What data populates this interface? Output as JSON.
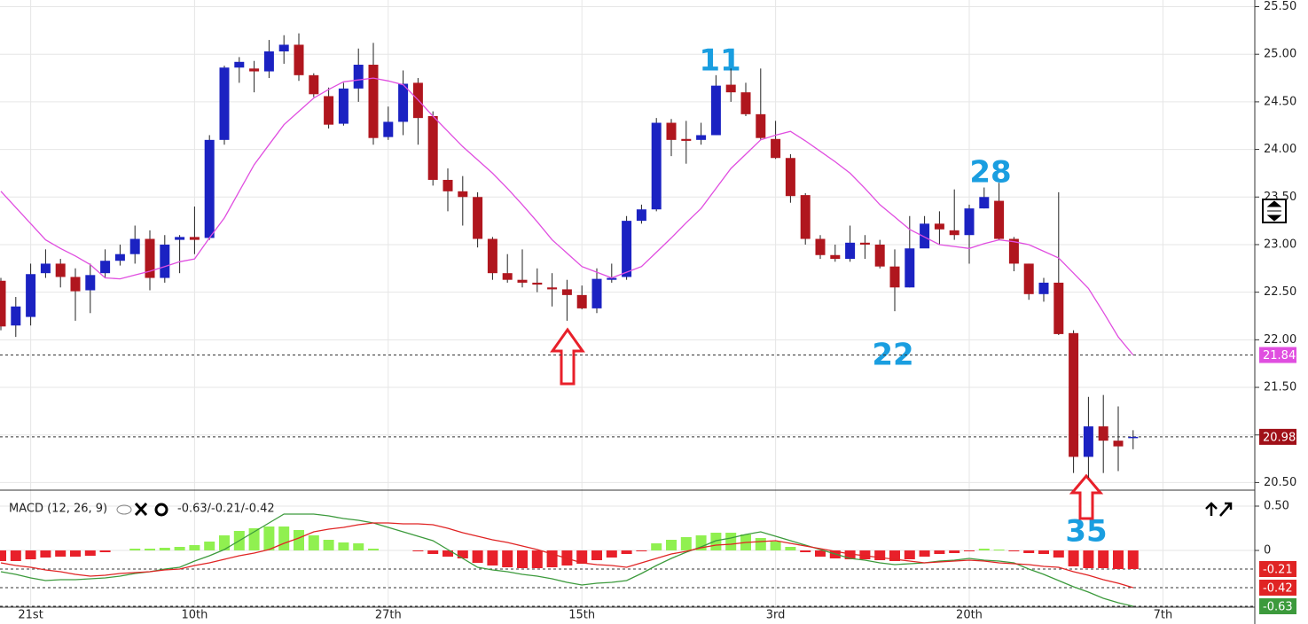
{
  "chart_data": [
    {
      "type": "candlestick",
      "categories": [
        null,
        null,
        "21st",
        null,
        null,
        null,
        null,
        null,
        null,
        null,
        null,
        null,
        null,
        "10th",
        null,
        null,
        null,
        null,
        null,
        null,
        null,
        null,
        null,
        null,
        null,
        null,
        "27th",
        null,
        null,
        null,
        null,
        null,
        null,
        null,
        null,
        null,
        null,
        null,
        null,
        "15th",
        null,
        null,
        null,
        null,
        null,
        null,
        null,
        null,
        null,
        null,
        null,
        null,
        "3rd",
        null,
        null,
        null,
        null,
        null,
        null,
        null,
        null,
        null,
        null,
        null,
        null,
        "20th",
        null,
        null,
        null,
        null,
        null,
        null,
        null,
        null,
        null,
        null,
        null,
        null,
        "7th"
      ],
      "open": [
        22.62,
        22.15,
        22.24,
        22.7,
        22.8,
        22.66,
        22.52,
        22.7,
        22.83,
        22.9,
        23.06,
        22.65,
        23.05,
        23.08,
        23.07,
        24.1,
        24.86,
        24.85,
        24.82,
        25.03,
        25.1,
        24.78,
        24.56,
        24.27,
        24.64,
        24.89,
        24.13,
        24.29,
        24.7,
        24.35,
        23.68,
        23.56,
        23.5,
        23.06,
        22.7,
        22.63,
        22.6,
        22.55,
        22.53,
        22.47,
        22.33,
        22.63,
        22.66,
        23.25,
        23.37,
        24.28,
        24.11,
        24.1,
        24.15,
        24.68,
        24.6,
        24.37,
        24.11,
        23.91,
        23.52,
        23.06,
        22.89,
        22.85,
        23.02,
        23.0,
        22.77,
        22.55,
        22.96,
        23.22,
        23.15,
        23.1,
        23.38,
        23.46,
        23.06,
        22.8,
        22.48,
        22.6,
        22.07,
        20.77,
        21.09,
        20.94,
        20.98,
        null,
        null
      ],
      "high": [
        22.65,
        22.45,
        22.8,
        22.95,
        22.85,
        22.75,
        22.8,
        22.95,
        23.0,
        23.2,
        23.15,
        23.1,
        23.1,
        23.4,
        24.15,
        24.88,
        24.97,
        24.93,
        25.15,
        25.2,
        25.22,
        24.8,
        24.65,
        24.7,
        25.06,
        25.12,
        24.45,
        24.83,
        24.75,
        24.4,
        23.8,
        23.72,
        23.55,
        23.08,
        22.9,
        22.95,
        22.75,
        22.7,
        22.63,
        22.57,
        22.75,
        22.8,
        23.3,
        23.42,
        24.33,
        24.32,
        24.3,
        24.28,
        24.78,
        24.85,
        24.7,
        24.85,
        24.3,
        23.95,
        23.54,
        23.1,
        23.0,
        23.2,
        23.1,
        23.05,
        22.95,
        23.3,
        23.3,
        23.35,
        23.58,
        23.42,
        23.6,
        23.65,
        23.08,
        22.8,
        22.65,
        23.55,
        22.1,
        21.4,
        21.42,
        21.3,
        21.05,
        null,
        null
      ],
      "low": [
        22.1,
        22.03,
        22.15,
        22.65,
        22.55,
        22.2,
        22.28,
        22.65,
        22.78,
        22.8,
        22.52,
        22.6,
        22.7,
        22.9,
        23.05,
        24.05,
        24.7,
        24.6,
        24.75,
        24.9,
        24.72,
        24.55,
        24.22,
        24.25,
        24.5,
        24.05,
        24.1,
        24.15,
        24.05,
        23.62,
        23.35,
        23.2,
        22.97,
        22.63,
        22.6,
        22.55,
        22.5,
        22.35,
        22.2,
        22.32,
        22.28,
        22.6,
        22.63,
        23.22,
        23.35,
        23.93,
        23.85,
        24.05,
        24.15,
        24.5,
        24.35,
        24.1,
        23.9,
        23.44,
        23.0,
        22.85,
        22.82,
        22.82,
        22.85,
        22.75,
        22.3,
        22.55,
        22.97,
        23.0,
        23.05,
        22.8,
        23.38,
        23.05,
        22.72,
        22.42,
        22.4,
        22.05,
        20.6,
        20.55,
        20.6,
        20.62,
        20.85,
        null,
        null
      ],
      "close": [
        22.14,
        22.35,
        22.69,
        22.8,
        22.66,
        22.51,
        22.68,
        22.83,
        22.9,
        23.06,
        22.65,
        23.0,
        23.08,
        23.05,
        24.1,
        24.86,
        24.92,
        24.82,
        25.03,
        25.1,
        24.78,
        24.58,
        24.26,
        24.64,
        24.89,
        24.12,
        24.29,
        24.69,
        24.33,
        23.68,
        23.56,
        23.5,
        23.06,
        22.7,
        22.63,
        22.6,
        22.58,
        22.53,
        22.47,
        22.33,
        22.64,
        22.65,
        23.25,
        23.37,
        24.28,
        24.1,
        24.09,
        24.15,
        24.67,
        24.6,
        24.37,
        24.12,
        23.91,
        23.51,
        23.06,
        22.89,
        22.85,
        23.02,
        23.0,
        22.77,
        22.55,
        22.96,
        23.22,
        23.16,
        23.1,
        23.38,
        23.5,
        23.06,
        22.8,
        22.48,
        22.6,
        22.06,
        20.77,
        21.09,
        20.94,
        20.88,
        20.98,
        null,
        null
      ],
      "up_color": "#1b22c2",
      "down_color": "#b0161e",
      "overlay": {
        "color": "#e04ee0",
        "values": [
          23.56,
          23.39,
          23.22,
          23.05,
          22.96,
          22.88,
          22.79,
          22.65,
          22.64,
          22.68,
          22.72,
          22.77,
          22.82,
          22.85,
          23.07,
          23.28,
          23.56,
          23.84,
          24.05,
          24.26,
          24.4,
          24.54,
          24.63,
          24.71,
          24.73,
          24.75,
          24.72,
          24.68,
          24.52,
          24.35,
          24.19,
          24.03,
          23.89,
          23.75,
          23.59,
          23.42,
          23.24,
          23.05,
          22.91,
          22.77,
          22.71,
          22.65,
          22.71,
          22.77,
          22.92,
          23.07,
          23.23,
          23.38,
          23.59,
          23.8,
          23.95,
          24.1,
          24.15,
          24.19,
          24.09,
          23.98,
          23.87,
          23.75,
          23.59,
          23.42,
          23.29,
          23.16,
          23.08,
          23.0,
          22.98,
          22.96,
          23.01,
          23.05,
          23.03,
          23.0,
          22.93,
          22.86,
          22.7,
          22.54,
          22.29,
          22.03,
          21.84,
          null,
          null
        ]
      },
      "ylim": [
        20.42,
        25.57
      ],
      "yticks": [
        {
          "value": 20.5,
          "label": "20.50"
        },
        {
          "value": 21,
          "label": "21.00"
        },
        {
          "value": 21.5,
          "label": "21.50"
        },
        {
          "value": 22,
          "label": "22.00"
        },
        {
          "value": 22.5,
          "label": "22.50"
        },
        {
          "value": 23,
          "label": "23.00"
        },
        {
          "value": 23.5,
          "label": "23.50"
        },
        {
          "value": 24,
          "label": "24.00"
        },
        {
          "value": 24.5,
          "label": "24.50"
        },
        {
          "value": 25,
          "label": "25.00"
        },
        {
          "value": 25.5,
          "label": "25.50"
        }
      ],
      "markers": [
        {
          "value": 21.84,
          "color": "#e04ee0"
        },
        {
          "value": 20.98,
          "color": "#a01018"
        }
      ],
      "annotations": [
        "11",
        "28",
        "22",
        "35"
      ],
      "grid": true
    },
    {
      "type": "macd",
      "title": "MACD (12, 26, 9)",
      "readout": "-0.63/-0.21/-0.42",
      "histogram": [
        -0.12,
        -0.12,
        -0.1,
        -0.08,
        -0.07,
        -0.07,
        -0.06,
        -0.02,
        0,
        0.02,
        0.02,
        0.03,
        0.04,
        0.06,
        0.1,
        0.17,
        0.22,
        0.25,
        0.27,
        0.27,
        0.23,
        0.17,
        0.12,
        0.09,
        0.08,
        0.02,
        0,
        0,
        -0.01,
        -0.04,
        -0.07,
        -0.09,
        -0.14,
        -0.17,
        -0.19,
        -0.2,
        -0.2,
        -0.19,
        -0.17,
        -0.15,
        -0.11,
        -0.08,
        -0.04,
        -0.01,
        0.08,
        0.12,
        0.15,
        0.17,
        0.2,
        0.2,
        0.18,
        0.14,
        0.1,
        0.04,
        -0.02,
        -0.07,
        -0.09,
        -0.1,
        -0.1,
        -0.11,
        -0.12,
        -0.1,
        -0.07,
        -0.04,
        -0.03,
        -0.01,
        0.02,
        0.01,
        -0.01,
        -0.03,
        -0.04,
        -0.08,
        -0.18,
        -0.2,
        -0.2,
        -0.21,
        -0.21,
        null,
        null
      ],
      "pos_color": "#90f050",
      "neg_color": "#e8202a",
      "series": [
        {
          "color": "#3c9a3c",
          "values": [
            -0.24,
            -0.27,
            -0.31,
            -0.34,
            -0.33,
            -0.33,
            -0.32,
            -0.31,
            -0.29,
            -0.26,
            -0.24,
            -0.21,
            -0.19,
            -0.12,
            -0.06,
            0.01,
            0.11,
            0.21,
            0.31,
            0.41,
            0.41,
            0.41,
            0.39,
            0.36,
            0.34,
            0.31,
            0.26,
            0.21,
            0.16,
            0.11,
            0.01,
            -0.09,
            -0.19,
            -0.22,
            -0.24,
            -0.27,
            -0.29,
            -0.32,
            -0.36,
            -0.39,
            -0.37,
            -0.36,
            -0.34,
            -0.26,
            -0.17,
            -0.09,
            -0.02,
            0.04,
            0.11,
            0.14,
            0.18,
            0.21,
            0.16,
            0.11,
            0.06,
            0.01,
            -0.04,
            -0.09,
            -0.11,
            -0.14,
            -0.16,
            -0.15,
            -0.14,
            -0.12,
            -0.11,
            -0.09,
            -0.11,
            -0.12,
            -0.14,
            -0.21,
            -0.27,
            -0.34,
            -0.41,
            -0.47,
            -0.54,
            -0.59,
            -0.63,
            null,
            null
          ]
        },
        {
          "color": "#e02424",
          "values": [
            -0.14,
            -0.17,
            -0.19,
            -0.22,
            -0.24,
            -0.27,
            -0.29,
            -0.28,
            -0.26,
            -0.25,
            -0.24,
            -0.22,
            -0.21,
            -0.17,
            -0.14,
            -0.1,
            -0.06,
            -0.03,
            0.01,
            0.08,
            0.14,
            0.21,
            0.24,
            0.26,
            0.29,
            0.31,
            0.31,
            0.3,
            0.3,
            0.29,
            0.25,
            0.2,
            0.16,
            0.12,
            0.09,
            0.05,
            0.01,
            -0.04,
            -0.09,
            -0.14,
            -0.16,
            -0.17,
            -0.19,
            -0.14,
            -0.09,
            -0.04,
            -0.01,
            0.03,
            0.06,
            0.07,
            0.09,
            0.1,
            0.11,
            0.08,
            0.05,
            0.02,
            -0.01,
            -0.04,
            -0.06,
            -0.08,
            -0.1,
            -0.12,
            -0.14,
            -0.13,
            -0.12,
            -0.11,
            -0.12,
            -0.14,
            -0.15,
            -0.16,
            -0.18,
            -0.19,
            -0.24,
            -0.28,
            -0.33,
            -0.37,
            -0.42,
            null,
            null
          ]
        }
      ],
      "ylim": [
        -0.64,
        0.68
      ],
      "yticks": [
        {
          "value": 0.5,
          "label": "0.50"
        },
        0
      ],
      "markers": [
        {
          "value": -0.21,
          "color": "#e02424"
        },
        {
          "value": -0.42,
          "color": "#e02424"
        },
        {
          "value": -0.63,
          "color": "#3c9a3c"
        }
      ],
      "grid": true
    }
  ]
}
